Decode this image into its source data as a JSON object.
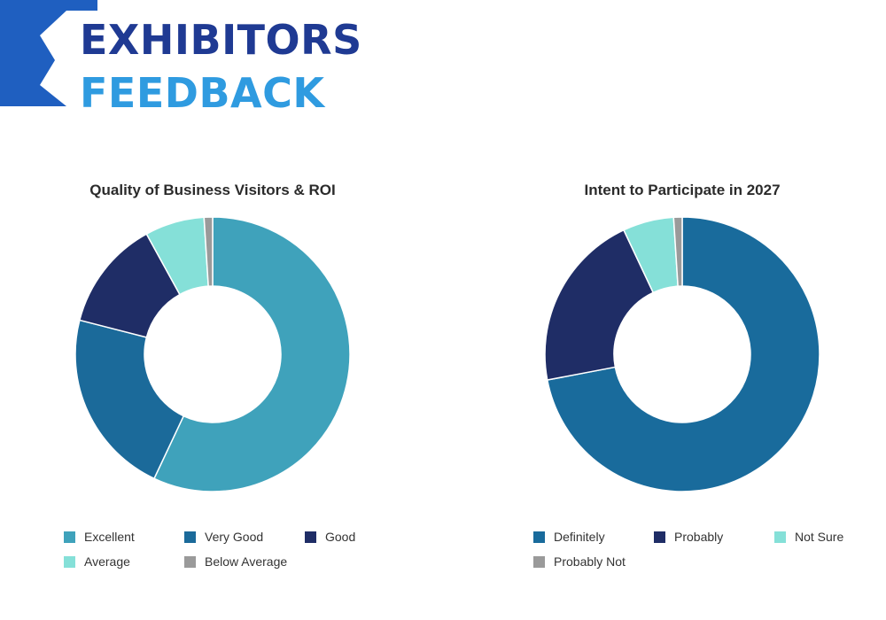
{
  "header": {
    "line1": "EXHIBITORS",
    "line2": "FEEDBACK",
    "line1_color": "#1f3a93",
    "line2_color": "#2f9be0",
    "corner_color": "#1f5fc0"
  },
  "chart_data": [
    {
      "type": "pie",
      "title": "Quality of Business Visitors & ROI",
      "donut": true,
      "legend_position": "bottom",
      "labels": [
        "Excellent",
        "Very Good",
        "Good",
        "Average",
        "Below Average"
      ],
      "values": [
        57,
        22,
        13,
        7,
        1
      ],
      "colors": [
        "#3fa2bb",
        "#1b6a9a",
        "#1f2d66",
        "#85e0d8",
        "#9a9a9a"
      ]
    },
    {
      "type": "pie",
      "title": "Intent to Participate in 2027",
      "donut": true,
      "legend_position": "bottom",
      "labels": [
        "Definitely",
        "Probably",
        "Not Sure",
        "Probably Not"
      ],
      "values": [
        72,
        21,
        6,
        1
      ],
      "colors": [
        "#196b9c",
        "#1f2d66",
        "#85e0d8",
        "#9a9a9a"
      ]
    }
  ]
}
